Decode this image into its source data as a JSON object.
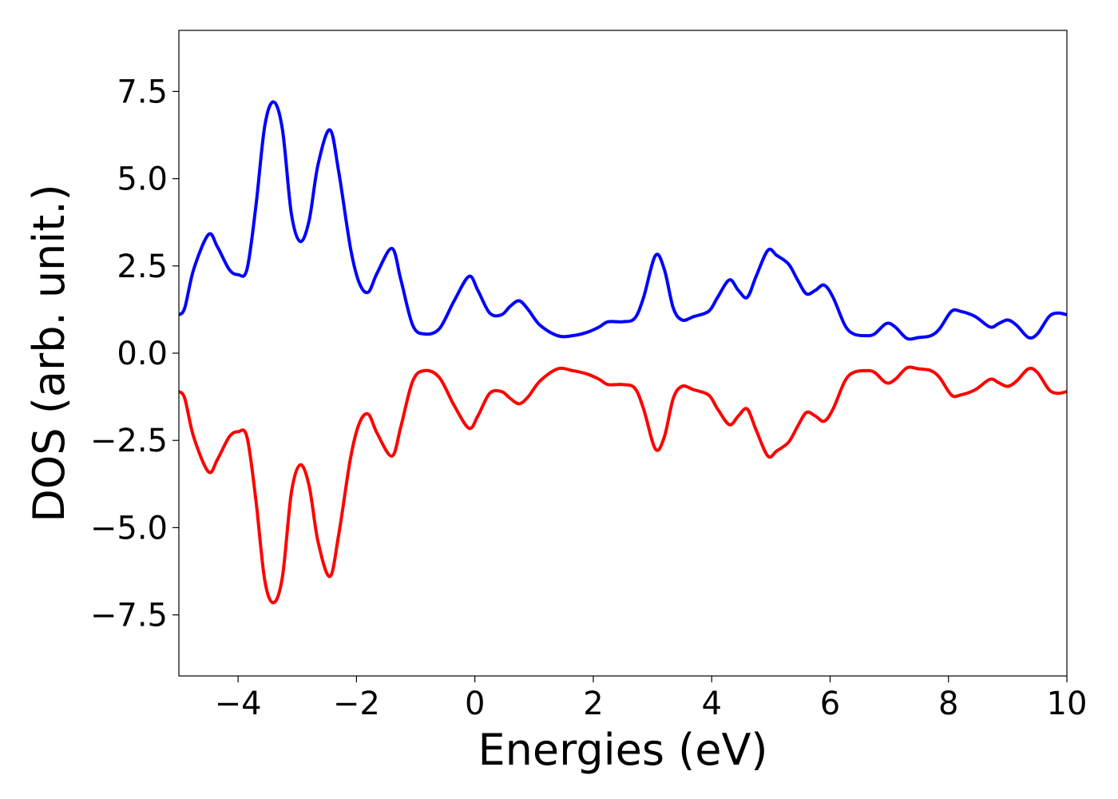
{
  "chart_data": {
    "type": "line",
    "title": "",
    "xlabel": "Energies (eV)",
    "ylabel": "DOS (arb. unit.)",
    "xlim": [
      -5,
      10
    ],
    "ylim": [
      -9.25,
      9.25
    ],
    "xticks": [
      -4,
      -2,
      0,
      2,
      4,
      6,
      8,
      10
    ],
    "xtick_labels": [
      "−4",
      "−2",
      "0",
      "2",
      "4",
      "6",
      "8",
      "10"
    ],
    "yticks": [
      -7.5,
      -5.0,
      -2.5,
      0.0,
      2.5,
      5.0,
      7.5
    ],
    "ytick_labels": [
      "−7.5",
      "−5.0",
      "−2.5",
      "0.0",
      "2.5",
      "5.0",
      "7.5"
    ],
    "grid": false,
    "legend": "none",
    "colors": {
      "spin_up": "#0000ff",
      "spin_down": "#ff0000"
    },
    "series": [
      {
        "color": "#0000ff",
        "points": [
          [
            -5.0,
            1.1
          ],
          [
            -4.9,
            1.3
          ],
          [
            -4.75,
            2.4
          ],
          [
            -4.5,
            3.4
          ],
          [
            -4.35,
            3.05
          ],
          [
            -4.15,
            2.4
          ],
          [
            -4.0,
            2.25
          ],
          [
            -3.85,
            2.4
          ],
          [
            -3.7,
            4.2
          ],
          [
            -3.55,
            6.5
          ],
          [
            -3.4,
            7.2
          ],
          [
            -3.25,
            6.4
          ],
          [
            -3.1,
            4.0
          ],
          [
            -2.95,
            3.2
          ],
          [
            -2.8,
            3.8
          ],
          [
            -2.65,
            5.4
          ],
          [
            -2.45,
            6.4
          ],
          [
            -2.3,
            5.2
          ],
          [
            -2.1,
            3.0
          ],
          [
            -1.95,
            2.0
          ],
          [
            -1.8,
            1.75
          ],
          [
            -1.65,
            2.3
          ],
          [
            -1.4,
            3.0
          ],
          [
            -1.25,
            2.1
          ],
          [
            -1.05,
            0.8
          ],
          [
            -0.85,
            0.55
          ],
          [
            -0.6,
            0.7
          ],
          [
            -0.35,
            1.5
          ],
          [
            -0.1,
            2.2
          ],
          [
            0.05,
            1.8
          ],
          [
            0.25,
            1.15
          ],
          [
            0.45,
            1.1
          ],
          [
            0.6,
            1.35
          ],
          [
            0.75,
            1.5
          ],
          [
            0.9,
            1.25
          ],
          [
            1.1,
            0.8
          ],
          [
            1.4,
            0.5
          ],
          [
            1.65,
            0.5
          ],
          [
            1.9,
            0.6
          ],
          [
            2.1,
            0.75
          ],
          [
            2.25,
            0.9
          ],
          [
            2.5,
            0.9
          ],
          [
            2.7,
            1.0
          ],
          [
            2.85,
            1.6
          ],
          [
            3.05,
            2.8
          ],
          [
            3.2,
            2.4
          ],
          [
            3.35,
            1.3
          ],
          [
            3.5,
            0.95
          ],
          [
            3.7,
            1.05
          ],
          [
            3.95,
            1.2
          ],
          [
            4.1,
            1.6
          ],
          [
            4.3,
            2.1
          ],
          [
            4.45,
            1.8
          ],
          [
            4.6,
            1.6
          ],
          [
            4.75,
            2.2
          ],
          [
            4.95,
            2.95
          ],
          [
            5.1,
            2.8
          ],
          [
            5.3,
            2.55
          ],
          [
            5.45,
            2.1
          ],
          [
            5.6,
            1.7
          ],
          [
            5.75,
            1.8
          ],
          [
            5.9,
            1.95
          ],
          [
            6.05,
            1.6
          ],
          [
            6.25,
            0.8
          ],
          [
            6.4,
            0.55
          ],
          [
            6.6,
            0.5
          ],
          [
            6.75,
            0.55
          ],
          [
            6.95,
            0.85
          ],
          [
            7.1,
            0.75
          ],
          [
            7.3,
            0.42
          ],
          [
            7.5,
            0.45
          ],
          [
            7.7,
            0.5
          ],
          [
            7.85,
            0.7
          ],
          [
            8.05,
            1.2
          ],
          [
            8.2,
            1.2
          ],
          [
            8.45,
            1.05
          ],
          [
            8.7,
            0.75
          ],
          [
            8.85,
            0.85
          ],
          [
            9.0,
            0.95
          ],
          [
            9.15,
            0.8
          ],
          [
            9.35,
            0.45
          ],
          [
            9.5,
            0.55
          ],
          [
            9.7,
            1.05
          ],
          [
            9.85,
            1.15
          ],
          [
            10.0,
            1.1
          ]
        ]
      },
      {
        "color": "#ff0000",
        "points": [
          [
            -5.0,
            -1.1
          ],
          [
            -4.9,
            -1.3
          ],
          [
            -4.75,
            -2.4
          ],
          [
            -4.5,
            -3.4
          ],
          [
            -4.35,
            -3.05
          ],
          [
            -4.15,
            -2.4
          ],
          [
            -4.0,
            -2.25
          ],
          [
            -3.85,
            -2.4
          ],
          [
            -3.7,
            -4.2
          ],
          [
            -3.55,
            -6.5
          ],
          [
            -3.4,
            -7.15
          ],
          [
            -3.25,
            -6.4
          ],
          [
            -3.1,
            -4.0
          ],
          [
            -2.95,
            -3.2
          ],
          [
            -2.8,
            -3.8
          ],
          [
            -2.65,
            -5.4
          ],
          [
            -2.45,
            -6.4
          ],
          [
            -2.3,
            -5.2
          ],
          [
            -2.1,
            -3.0
          ],
          [
            -1.95,
            -2.0
          ],
          [
            -1.8,
            -1.75
          ],
          [
            -1.65,
            -2.3
          ],
          [
            -1.4,
            -2.95
          ],
          [
            -1.25,
            -2.1
          ],
          [
            -1.05,
            -0.8
          ],
          [
            -0.85,
            -0.5
          ],
          [
            -0.6,
            -0.7
          ],
          [
            -0.35,
            -1.5
          ],
          [
            -0.1,
            -2.15
          ],
          [
            0.05,
            -1.8
          ],
          [
            0.25,
            -1.15
          ],
          [
            0.45,
            -1.1
          ],
          [
            0.6,
            -1.3
          ],
          [
            0.75,
            -1.45
          ],
          [
            0.9,
            -1.25
          ],
          [
            1.1,
            -0.8
          ],
          [
            1.4,
            -0.45
          ],
          [
            1.65,
            -0.5
          ],
          [
            1.9,
            -0.6
          ],
          [
            2.1,
            -0.75
          ],
          [
            2.25,
            -0.9
          ],
          [
            2.5,
            -0.9
          ],
          [
            2.7,
            -1.0
          ],
          [
            2.85,
            -1.6
          ],
          [
            3.05,
            -2.75
          ],
          [
            3.2,
            -2.4
          ],
          [
            3.35,
            -1.3
          ],
          [
            3.5,
            -0.95
          ],
          [
            3.7,
            -1.05
          ],
          [
            3.95,
            -1.2
          ],
          [
            4.1,
            -1.6
          ],
          [
            4.3,
            -2.05
          ],
          [
            4.45,
            -1.8
          ],
          [
            4.6,
            -1.6
          ],
          [
            4.75,
            -2.2
          ],
          [
            4.95,
            -2.95
          ],
          [
            5.1,
            -2.8
          ],
          [
            5.3,
            -2.55
          ],
          [
            5.45,
            -2.1
          ],
          [
            5.6,
            -1.7
          ],
          [
            5.75,
            -1.8
          ],
          [
            5.9,
            -1.95
          ],
          [
            6.05,
            -1.6
          ],
          [
            6.25,
            -0.8
          ],
          [
            6.4,
            -0.55
          ],
          [
            6.6,
            -0.5
          ],
          [
            6.75,
            -0.55
          ],
          [
            6.95,
            -0.85
          ],
          [
            7.1,
            -0.75
          ],
          [
            7.3,
            -0.42
          ],
          [
            7.5,
            -0.45
          ],
          [
            7.7,
            -0.5
          ],
          [
            7.85,
            -0.7
          ],
          [
            8.05,
            -1.2
          ],
          [
            8.2,
            -1.2
          ],
          [
            8.45,
            -1.05
          ],
          [
            8.7,
            -0.75
          ],
          [
            8.85,
            -0.85
          ],
          [
            9.0,
            -0.95
          ],
          [
            9.15,
            -0.8
          ],
          [
            9.35,
            -0.45
          ],
          [
            9.5,
            -0.55
          ],
          [
            9.7,
            -1.05
          ],
          [
            9.85,
            -1.15
          ],
          [
            10.0,
            -1.1
          ]
        ]
      }
    ]
  }
}
